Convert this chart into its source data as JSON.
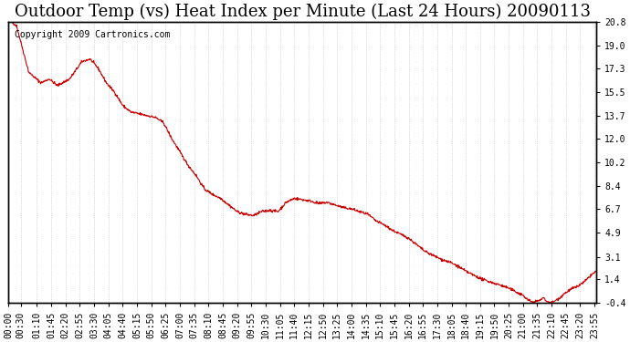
{
  "title": "Outdoor Temp (vs) Heat Index per Minute (Last 24 Hours) 20090113",
  "copyright_text": "Copyright 2009 Cartronics.com",
  "line_color": "#cc0000",
  "background_color": "#ffffff",
  "grid_color": "#aaaaaa",
  "yticks": [
    -0.4,
    1.4,
    3.1,
    4.9,
    6.7,
    8.4,
    10.2,
    12.0,
    13.7,
    15.5,
    17.3,
    19.0,
    20.8
  ],
  "ymin": -0.4,
  "ymax": 20.8,
  "xtick_labels": [
    "00:00",
    "00:30",
    "01:10",
    "01:45",
    "02:20",
    "02:55",
    "03:30",
    "04:05",
    "04:40",
    "05:15",
    "05:50",
    "06:25",
    "07:00",
    "07:35",
    "08:10",
    "08:45",
    "09:20",
    "09:55",
    "10:30",
    "11:05",
    "11:40",
    "12:15",
    "12:50",
    "13:25",
    "14:00",
    "14:35",
    "15:10",
    "15:45",
    "16:20",
    "16:55",
    "17:30",
    "18:05",
    "18:40",
    "19:15",
    "19:50",
    "20:25",
    "21:00",
    "21:35",
    "22:10",
    "22:45",
    "23:20",
    "23:55"
  ],
  "key_points": {
    "0": 21.0,
    "30": 19.5,
    "60": 16.5,
    "90": 16.2,
    "120": 16.8,
    "150": 16.2,
    "160": 16.6,
    "180": 17.8,
    "200": 18.0,
    "220": 17.5,
    "240": 16.3,
    "270": 14.2,
    "300": 13.7,
    "330": 13.8,
    "360": 13.6,
    "390": 12.8,
    "420": 11.0,
    "450": 9.5,
    "480": 8.0,
    "510": 7.5,
    "540": 7.0,
    "570": 6.5,
    "600": 6.2,
    "630": 6.4,
    "660": 6.2,
    "690": 6.0,
    "720": 6.2,
    "750": 7.0,
    "780": 7.3,
    "800": 7.1,
    "810": 7.2,
    "840": 7.0,
    "870": 6.5,
    "900": 6.2,
    "930": 6.0,
    "960": 5.4,
    "990": 5.0,
    "1020": 4.2,
    "1050": 3.5,
    "1080": 3.0,
    "1110": 2.5,
    "1140": 1.8,
    "1170": 1.3,
    "1200": 1.0,
    "1230": 0.5,
    "1260": 0.2,
    "1290": -0.1,
    "1320": -0.3,
    "1350": -0.2,
    "1380": 0.2,
    "1410": 1.0,
    "1440": 2.0
  },
  "title_fontsize": 13,
  "tick_fontsize": 7,
  "copyright_fontsize": 7
}
